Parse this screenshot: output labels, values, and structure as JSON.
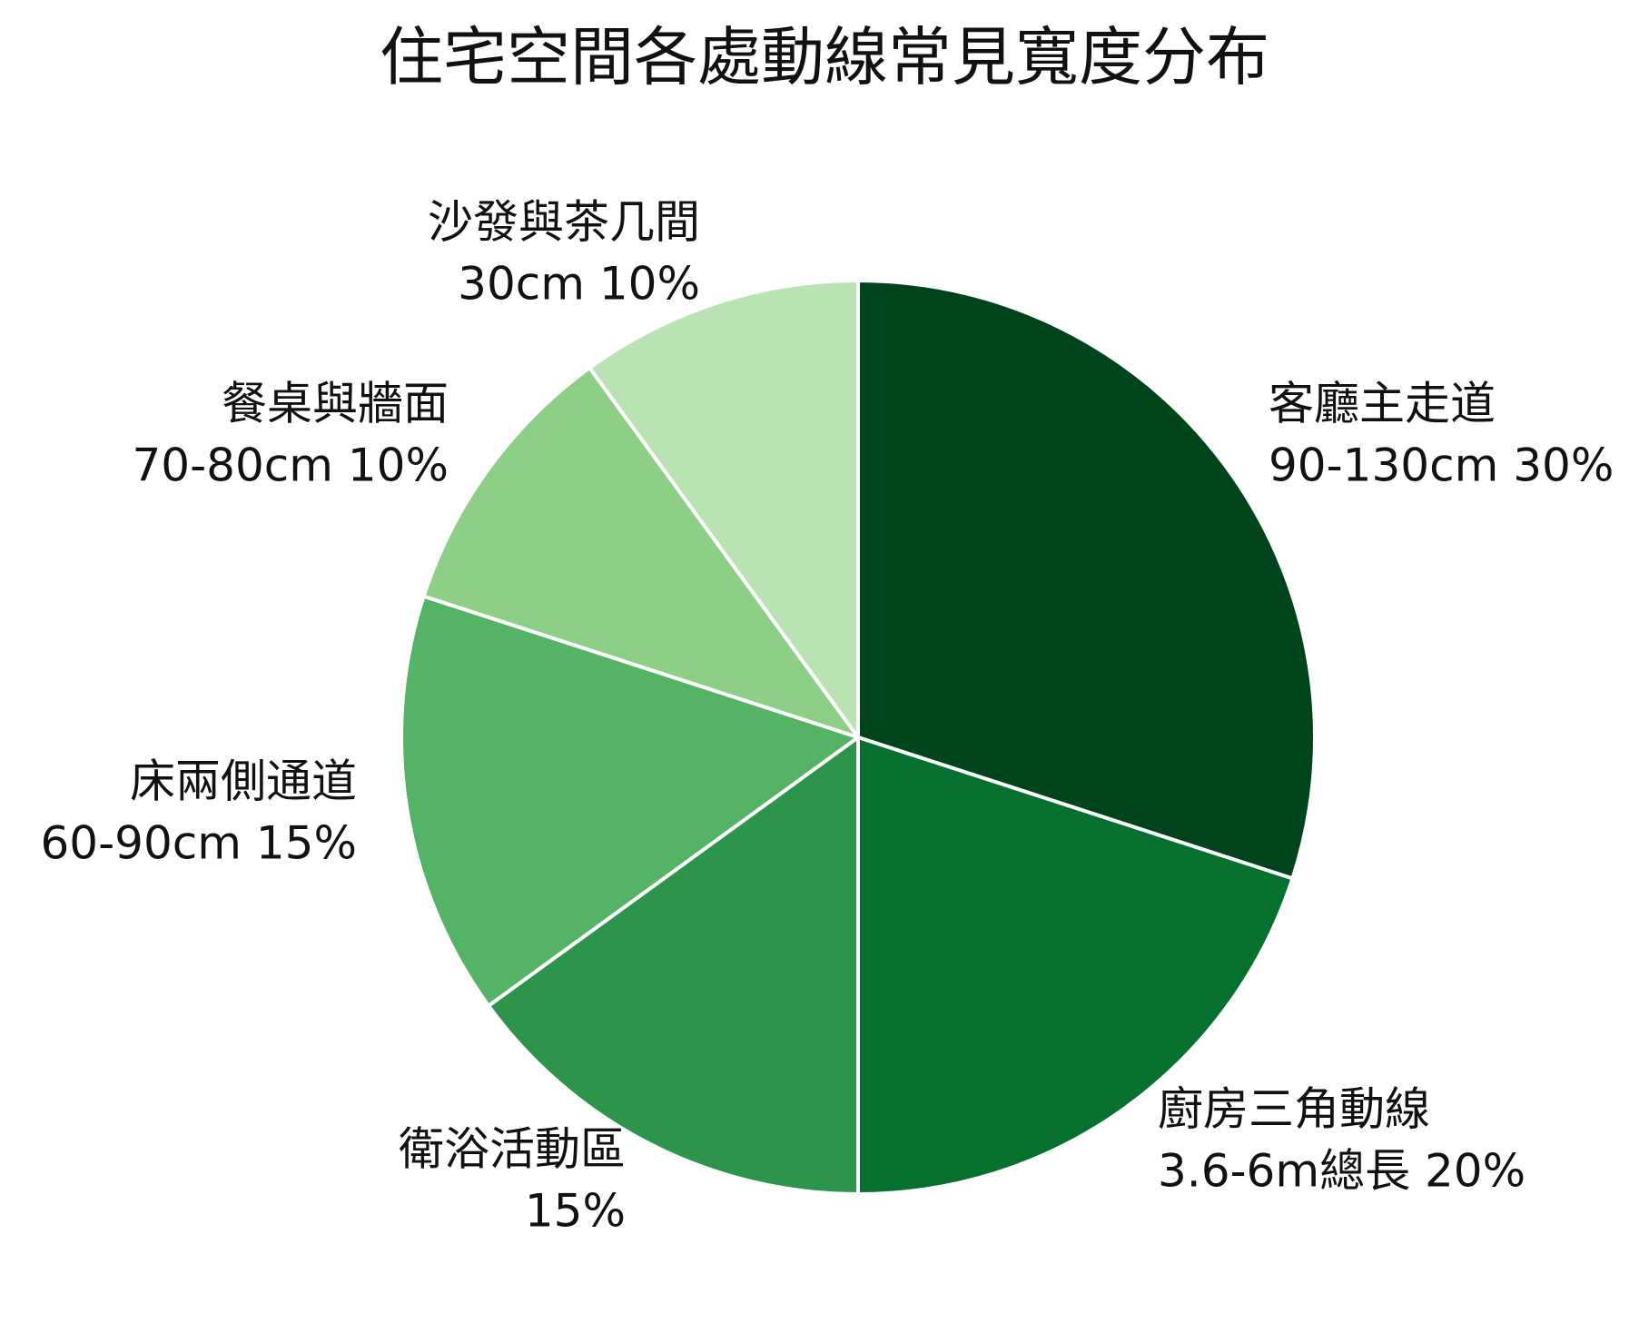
{
  "chart_data": {
    "type": "pie",
    "title": "住宅空間各處動線常見寬度分布",
    "categories": [
      "客廳主走道",
      "廚房三角動線",
      "衛浴活動區",
      "床兩側通道",
      "餐桌與牆面",
      "沙發與茶几間"
    ],
    "values": [
      30,
      20,
      15,
      15,
      10,
      10
    ],
    "value_labels": [
      "90-130cm 30%",
      "3.6-6m總長 20%",
      "15%",
      "60-90cm 15%",
      "70-80cm 10%",
      "30cm 10%"
    ],
    "colors": [
      "#00441b",
      "#06702f",
      "#2d944b",
      "#55b366",
      "#8ecf87",
      "#b9e3b3"
    ]
  }
}
